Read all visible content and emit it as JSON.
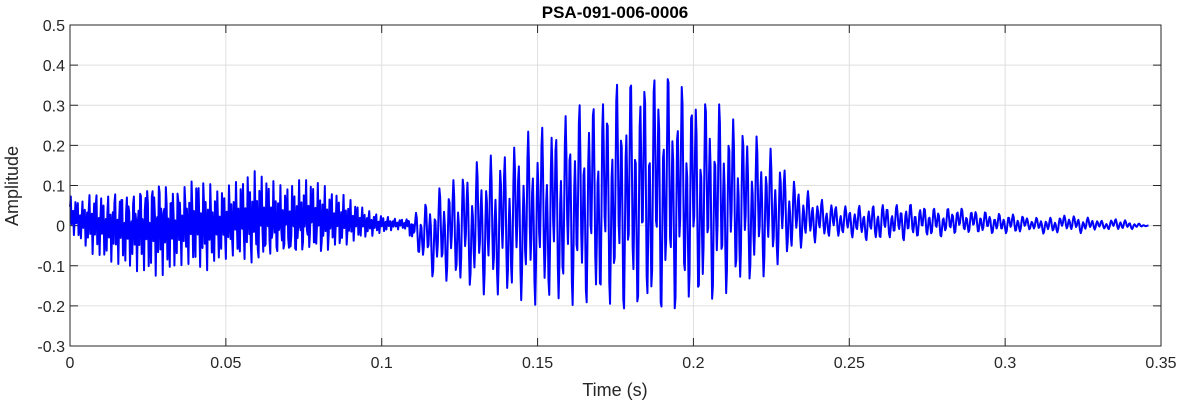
{
  "chart_data": {
    "type": "line",
    "title": "PSA-091-006-0006",
    "xlabel": "Time (s)",
    "ylabel": "Amplitude",
    "xlim": [
      0,
      0.35
    ],
    "ylim": [
      -0.3,
      0.5
    ],
    "xticks": [
      0,
      0.05,
      0.1,
      0.15,
      0.2,
      0.25,
      0.3,
      0.35
    ],
    "xtick_labels": [
      "0",
      "0.05",
      "0.1",
      "0.15",
      "0.2",
      "0.25",
      "0.3",
      "0.35"
    ],
    "yticks": [
      -0.3,
      -0.2,
      -0.1,
      0,
      0.1,
      0.2,
      0.3,
      0.4,
      0.5
    ],
    "ytick_labels": [
      "-0.3",
      "-0.2",
      "-0.1",
      "0",
      "0.1",
      "0.2",
      "0.3",
      "0.4",
      "0.5"
    ],
    "grid": true,
    "legend": "none",
    "series": [
      {
        "color": "#0000ff",
        "x": [
          0,
          0.004,
          0.008,
          0.012,
          0.016,
          0.02,
          0.024,
          0.028,
          0.032,
          0.036,
          0.04,
          0.044,
          0.048,
          0.052,
          0.056,
          0.06,
          0.064,
          0.068,
          0.072,
          0.076,
          0.08,
          0.084,
          0.088,
          0.092,
          0.096,
          0.1,
          0.104,
          0.108,
          0.112,
          0.116,
          0.12,
          0.124,
          0.128,
          0.132,
          0.136,
          0.14,
          0.144,
          0.148,
          0.152,
          0.156,
          0.16,
          0.164,
          0.168,
          0.172,
          0.176,
          0.18,
          0.184,
          0.188,
          0.192,
          0.196,
          0.2,
          0.204,
          0.208,
          0.212,
          0.216,
          0.22,
          0.224,
          0.228,
          0.232,
          0.236,
          0.24,
          0.244,
          0.248,
          0.252,
          0.256,
          0.26,
          0.264,
          0.268,
          0.272,
          0.276,
          0.28,
          0.284,
          0.288,
          0.292,
          0.296,
          0.3,
          0.304,
          0.308,
          0.312,
          0.316,
          0.32,
          0.324,
          0.328,
          0.332,
          0.336,
          0.34,
          0.346
        ],
        "upper": [
          0.08,
          0.07,
          0.1,
          0.09,
          0.11,
          0.1,
          0.13,
          0.14,
          0.12,
          0.11,
          0.14,
          0.12,
          0.1,
          0.11,
          0.13,
          0.14,
          0.12,
          0.1,
          0.11,
          0.12,
          0.11,
          0.09,
          0.08,
          0.06,
          0.04,
          0.03,
          0.02,
          0.02,
          0.05,
          0.07,
          0.11,
          0.13,
          0.15,
          0.17,
          0.18,
          0.2,
          0.22,
          0.24,
          0.26,
          0.27,
          0.29,
          0.31,
          0.33,
          0.35,
          0.37,
          0.38,
          0.39,
          0.41,
          0.39,
          0.37,
          0.35,
          0.33,
          0.31,
          0.29,
          0.26,
          0.23,
          0.2,
          0.17,
          0.12,
          0.09,
          0.07,
          0.06,
          0.05,
          0.05,
          0.05,
          0.06,
          0.05,
          0.06,
          0.05,
          0.05,
          0.04,
          0.05,
          0.04,
          0.04,
          0.03,
          0.03,
          0.03,
          0.02,
          0.02,
          0.02,
          0.03,
          0.02,
          0.02,
          0.01,
          0.02,
          0.01,
          0.0
        ],
        "lower": [
          -0.02,
          -0.05,
          -0.08,
          -0.09,
          -0.1,
          -0.11,
          -0.12,
          -0.13,
          -0.12,
          -0.1,
          -0.11,
          -0.12,
          -0.1,
          -0.09,
          -0.11,
          -0.12,
          -0.1,
          -0.09,
          -0.1,
          -0.08,
          -0.09,
          -0.07,
          -0.06,
          -0.04,
          -0.03,
          -0.02,
          -0.01,
          -0.01,
          -0.08,
          -0.13,
          -0.14,
          -0.15,
          -0.16,
          -0.17,
          -0.18,
          -0.19,
          -0.19,
          -0.2,
          -0.2,
          -0.21,
          -0.2,
          -0.21,
          -0.21,
          -0.22,
          -0.22,
          -0.23,
          -0.23,
          -0.24,
          -0.23,
          -0.22,
          -0.21,
          -0.2,
          -0.19,
          -0.17,
          -0.16,
          -0.14,
          -0.12,
          -0.1,
          -0.07,
          -0.05,
          -0.04,
          -0.03,
          -0.03,
          -0.03,
          -0.04,
          -0.04,
          -0.03,
          -0.04,
          -0.03,
          -0.03,
          -0.03,
          -0.02,
          -0.02,
          -0.02,
          -0.02,
          -0.02,
          -0.02,
          -0.01,
          -0.02,
          -0.02,
          -0.01,
          -0.02,
          -0.01,
          -0.01,
          -0.01,
          -0.01,
          0.0
        ]
      }
    ]
  }
}
